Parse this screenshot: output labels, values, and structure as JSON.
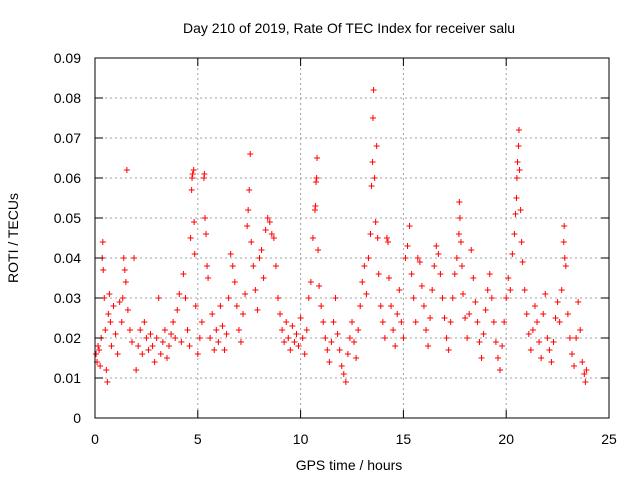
{
  "chart_data": {
    "type": "scatter",
    "title": "Day 210 of 2019, Rate Of TEC Index for receiver salu",
    "xlabel": "GPS time / hours",
    "ylabel": "ROTI / TECUs",
    "xlim": [
      0,
      25
    ],
    "ylim": [
      0,
      0.09
    ],
    "xticks": [
      0,
      5,
      10,
      15,
      20,
      25
    ],
    "xtick_labels": [
      "0",
      "5",
      "10",
      "15",
      "20",
      "25"
    ],
    "yticks": [
      0,
      0.01,
      0.02,
      0.03,
      0.04,
      0.05,
      0.06,
      0.07,
      0.08,
      0.09
    ],
    "ytick_labels": [
      "0",
      "0.01",
      "0.02",
      "0.03",
      "0.04",
      "0.05",
      "0.06",
      "0.07",
      "0.08",
      "0.09"
    ],
    "grid": true,
    "marker": "plus",
    "color": "#ff0000",
    "series": [
      {
        "points": [
          [
            0.05,
            0.016
          ],
          [
            0.1,
            0.014
          ],
          [
            0.15,
            0.018
          ],
          [
            0.2,
            0.017
          ],
          [
            0.25,
            0.013
          ],
          [
            0.3,
            0.02
          ],
          [
            0.35,
            0.04
          ],
          [
            0.38,
            0.044
          ],
          [
            0.4,
            0.037
          ],
          [
            0.45,
            0.03
          ],
          [
            0.5,
            0.022
          ],
          [
            0.55,
            0.012
          ],
          [
            0.6,
            0.009
          ],
          [
            0.65,
            0.026
          ],
          [
            0.7,
            0.031
          ],
          [
            0.75,
            0.024
          ],
          [
            0.8,
            0.018
          ],
          [
            0.9,
            0.028
          ],
          [
            1.0,
            0.021
          ],
          [
            1.1,
            0.016
          ],
          [
            1.2,
            0.029
          ],
          [
            1.3,
            0.024
          ],
          [
            1.35,
            0.03
          ],
          [
            1.4,
            0.04
          ],
          [
            1.45,
            0.037
          ],
          [
            1.5,
            0.034
          ],
          [
            1.55,
            0.062
          ],
          [
            1.6,
            0.027
          ],
          [
            1.7,
            0.022
          ],
          [
            1.8,
            0.019
          ],
          [
            1.9,
            0.04
          ],
          [
            2.0,
            0.012
          ],
          [
            2.1,
            0.018
          ],
          [
            2.2,
            0.022
          ],
          [
            2.3,
            0.016
          ],
          [
            2.4,
            0.024
          ],
          [
            2.5,
            0.02
          ],
          [
            2.6,
            0.017
          ],
          [
            2.7,
            0.021
          ],
          [
            2.8,
            0.018
          ],
          [
            2.9,
            0.014
          ],
          [
            3.0,
            0.02
          ],
          [
            3.1,
            0.03
          ],
          [
            3.2,
            0.016
          ],
          [
            3.3,
            0.019
          ],
          [
            3.4,
            0.022
          ],
          [
            3.5,
            0.015
          ],
          [
            3.6,
            0.018
          ],
          [
            3.7,
            0.021
          ],
          [
            3.8,
            0.024
          ],
          [
            3.9,
            0.02
          ],
          [
            4.0,
            0.027
          ],
          [
            4.1,
            0.031
          ],
          [
            4.2,
            0.019
          ],
          [
            4.3,
            0.036
          ],
          [
            4.4,
            0.03
          ],
          [
            4.5,
            0.022
          ],
          [
            4.6,
            0.018
          ],
          [
            4.65,
            0.045
          ],
          [
            4.7,
            0.057
          ],
          [
            4.72,
            0.06
          ],
          [
            4.75,
            0.061
          ],
          [
            4.8,
            0.062
          ],
          [
            4.82,
            0.049
          ],
          [
            4.85,
            0.041
          ],
          [
            4.9,
            0.028
          ],
          [
            5.0,
            0.016
          ],
          [
            5.1,
            0.02
          ],
          [
            5.2,
            0.024
          ],
          [
            5.3,
            0.06
          ],
          [
            5.32,
            0.061
          ],
          [
            5.35,
            0.05
          ],
          [
            5.4,
            0.046
          ],
          [
            5.45,
            0.038
          ],
          [
            5.5,
            0.035
          ],
          [
            5.6,
            0.02
          ],
          [
            5.7,
            0.026
          ],
          [
            5.8,
            0.017
          ],
          [
            5.9,
            0.022
          ],
          [
            6.0,
            0.019
          ],
          [
            6.1,
            0.028
          ],
          [
            6.2,
            0.023
          ],
          [
            6.3,
            0.017
          ],
          [
            6.4,
            0.021
          ],
          [
            6.5,
            0.03
          ],
          [
            6.6,
            0.041
          ],
          [
            6.7,
            0.038
          ],
          [
            6.8,
            0.034
          ],
          [
            6.9,
            0.028
          ],
          [
            7.0,
            0.022
          ],
          [
            7.1,
            0.019
          ],
          [
            7.2,
            0.026
          ],
          [
            7.3,
            0.031
          ],
          [
            7.4,
            0.048
          ],
          [
            7.45,
            0.052
          ],
          [
            7.5,
            0.057
          ],
          [
            7.55,
            0.066
          ],
          [
            7.6,
            0.044
          ],
          [
            7.7,
            0.038
          ],
          [
            7.8,
            0.032
          ],
          [
            7.9,
            0.027
          ],
          [
            8.0,
            0.04
          ],
          [
            8.1,
            0.042
          ],
          [
            8.2,
            0.035
          ],
          [
            8.3,
            0.047
          ],
          [
            8.4,
            0.05
          ],
          [
            8.5,
            0.049
          ],
          [
            8.6,
            0.046
          ],
          [
            8.7,
            0.045
          ],
          [
            8.8,
            0.038
          ],
          [
            8.9,
            0.03
          ],
          [
            9.0,
            0.026
          ],
          [
            9.1,
            0.022
          ],
          [
            9.2,
            0.019
          ],
          [
            9.3,
            0.024
          ],
          [
            9.4,
            0.02
          ],
          [
            9.5,
            0.017
          ],
          [
            9.6,
            0.023
          ],
          [
            9.7,
            0.019
          ],
          [
            9.8,
            0.021
          ],
          [
            9.9,
            0.018
          ],
          [
            10.0,
            0.025
          ],
          [
            10.1,
            0.02
          ],
          [
            10.2,
            0.016
          ],
          [
            10.3,
            0.022
          ],
          [
            10.4,
            0.03
          ],
          [
            10.5,
            0.034
          ],
          [
            10.6,
            0.045
          ],
          [
            10.7,
            0.052
          ],
          [
            10.72,
            0.053
          ],
          [
            10.75,
            0.059
          ],
          [
            10.78,
            0.06
          ],
          [
            10.8,
            0.065
          ],
          [
            10.85,
            0.042
          ],
          [
            10.9,
            0.033
          ],
          [
            11.0,
            0.028
          ],
          [
            11.1,
            0.024
          ],
          [
            11.2,
            0.02
          ],
          [
            11.3,
            0.017
          ],
          [
            11.4,
            0.014
          ],
          [
            11.5,
            0.019
          ],
          [
            11.6,
            0.024
          ],
          [
            11.7,
            0.03
          ],
          [
            11.8,
            0.021
          ],
          [
            11.9,
            0.017
          ],
          [
            12.0,
            0.013
          ],
          [
            12.1,
            0.011
          ],
          [
            12.2,
            0.009
          ],
          [
            12.3,
            0.016
          ],
          [
            12.4,
            0.02
          ],
          [
            12.5,
            0.024
          ],
          [
            12.6,
            0.019
          ],
          [
            12.7,
            0.015
          ],
          [
            12.8,
            0.022
          ],
          [
            12.9,
            0.028
          ],
          [
            13.0,
            0.034
          ],
          [
            13.1,
            0.038
          ],
          [
            13.2,
            0.031
          ],
          [
            13.3,
            0.04
          ],
          [
            13.4,
            0.046
          ],
          [
            13.45,
            0.058
          ],
          [
            13.5,
            0.064
          ],
          [
            13.52,
            0.075
          ],
          [
            13.55,
            0.082
          ],
          [
            13.6,
            0.06
          ],
          [
            13.65,
            0.049
          ],
          [
            13.7,
            0.068
          ],
          [
            13.75,
            0.045
          ],
          [
            13.8,
            0.036
          ],
          [
            13.9,
            0.028
          ],
          [
            14.0,
            0.024
          ],
          [
            14.1,
            0.02
          ],
          [
            14.2,
            0.045
          ],
          [
            14.25,
            0.044
          ],
          [
            14.3,
            0.035
          ],
          [
            14.4,
            0.028
          ],
          [
            14.5,
            0.022
          ],
          [
            14.6,
            0.018
          ],
          [
            14.7,
            0.026
          ],
          [
            14.8,
            0.032
          ],
          [
            14.9,
            0.024
          ],
          [
            15.0,
            0.02
          ],
          [
            15.1,
            0.04
          ],
          [
            15.2,
            0.043
          ],
          [
            15.3,
            0.048
          ],
          [
            15.4,
            0.036
          ],
          [
            15.5,
            0.03
          ],
          [
            15.6,
            0.024
          ],
          [
            15.7,
            0.04
          ],
          [
            15.8,
            0.039
          ],
          [
            15.9,
            0.033
          ],
          [
            16.0,
            0.028
          ],
          [
            16.1,
            0.022
          ],
          [
            16.2,
            0.018
          ],
          [
            16.3,
            0.025
          ],
          [
            16.4,
            0.032
          ],
          [
            16.5,
            0.038
          ],
          [
            16.6,
            0.043
          ],
          [
            16.7,
            0.041
          ],
          [
            16.8,
            0.036
          ],
          [
            16.9,
            0.03
          ],
          [
            17.0,
            0.025
          ],
          [
            17.1,
            0.02
          ],
          [
            17.2,
            0.017
          ],
          [
            17.3,
            0.024
          ],
          [
            17.4,
            0.03
          ],
          [
            17.5,
            0.036
          ],
          [
            17.6,
            0.04
          ],
          [
            17.7,
            0.046
          ],
          [
            17.72,
            0.054
          ],
          [
            17.75,
            0.05
          ],
          [
            17.8,
            0.044
          ],
          [
            17.85,
            0.038
          ],
          [
            17.9,
            0.031
          ],
          [
            18.0,
            0.025
          ],
          [
            18.1,
            0.02
          ],
          [
            18.2,
            0.026
          ],
          [
            18.3,
            0.042
          ],
          [
            18.4,
            0.035
          ],
          [
            18.5,
            0.029
          ],
          [
            18.6,
            0.024
          ],
          [
            18.7,
            0.019
          ],
          [
            18.8,
            0.015
          ],
          [
            18.9,
            0.021
          ],
          [
            19.0,
            0.027
          ],
          [
            19.1,
            0.032
          ],
          [
            19.2,
            0.036
          ],
          [
            19.3,
            0.03
          ],
          [
            19.4,
            0.024
          ],
          [
            19.5,
            0.019
          ],
          [
            19.6,
            0.015
          ],
          [
            19.7,
            0.012
          ],
          [
            19.8,
            0.018
          ],
          [
            19.9,
            0.024
          ],
          [
            20.0,
            0.03
          ],
          [
            20.1,
            0.035
          ],
          [
            20.2,
            0.032
          ],
          [
            20.3,
            0.041
          ],
          [
            20.4,
            0.046
          ],
          [
            20.45,
            0.051
          ],
          [
            20.5,
            0.055
          ],
          [
            20.52,
            0.06
          ],
          [
            20.55,
            0.064
          ],
          [
            20.6,
            0.068
          ],
          [
            20.62,
            0.072
          ],
          [
            20.65,
            0.062
          ],
          [
            20.7,
            0.052
          ],
          [
            20.75,
            0.044
          ],
          [
            20.8,
            0.039
          ],
          [
            20.9,
            0.032
          ],
          [
            21.0,
            0.026
          ],
          [
            21.1,
            0.021
          ],
          [
            21.2,
            0.017
          ],
          [
            21.3,
            0.022
          ],
          [
            21.4,
            0.028
          ],
          [
            21.5,
            0.024
          ],
          [
            21.6,
            0.019
          ],
          [
            21.7,
            0.015
          ],
          [
            21.8,
            0.026
          ],
          [
            21.9,
            0.031
          ],
          [
            22.0,
            0.02
          ],
          [
            22.1,
            0.017
          ],
          [
            22.2,
            0.014
          ],
          [
            22.3,
            0.019
          ],
          [
            22.4,
            0.025
          ],
          [
            22.5,
            0.029
          ],
          [
            22.6,
            0.024
          ],
          [
            22.7,
            0.032
          ],
          [
            22.8,
            0.044
          ],
          [
            22.82,
            0.048
          ],
          [
            22.85,
            0.04
          ],
          [
            22.9,
            0.038
          ],
          [
            23.0,
            0.026
          ],
          [
            23.1,
            0.02
          ],
          [
            23.2,
            0.016
          ],
          [
            23.3,
            0.013
          ],
          [
            23.4,
            0.02
          ],
          [
            23.5,
            0.029
          ],
          [
            23.6,
            0.022
          ],
          [
            23.7,
            0.014
          ],
          [
            23.8,
            0.011
          ],
          [
            23.85,
            0.009
          ],
          [
            23.9,
            0.012
          ]
        ]
      }
    ]
  }
}
